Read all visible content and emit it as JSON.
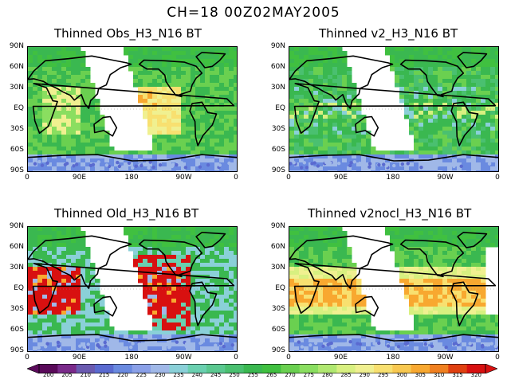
{
  "header": {
    "title": "CH=18   00Z02MAY2005"
  },
  "panels": [
    {
      "title": "Thinned Obs_H3_N16 BT",
      "style": "obs"
    },
    {
      "title": "Thinned v2_H3_N16 BT",
      "style": "v2"
    },
    {
      "title": "Thinned Old_H3_N16 BT",
      "style": "old"
    },
    {
      "title": "Thinned v2nocl_H3_N16 BT",
      "style": "nocl"
    }
  ],
  "axes": {
    "y_ticks": [
      "90N",
      "60N",
      "30N",
      "EQ",
      "30S",
      "60S",
      "90S"
    ],
    "x_ticks": [
      "0",
      "90E",
      "180",
      "90W",
      "0"
    ]
  },
  "colorbar": {
    "labels": [
      "200",
      "205",
      "210",
      "215",
      "220",
      "225",
      "230",
      "235",
      "240",
      "245",
      "250",
      "255",
      "265",
      "270",
      "275",
      "280",
      "285",
      "290",
      "295",
      "300",
      "305",
      "310",
      "315",
      "320"
    ],
    "colors": [
      "#5a0a5a",
      "#7a2a8a",
      "#6a5ab0",
      "#5a6ad0",
      "#6a8ae0",
      "#8aa0e8",
      "#a0b8e8",
      "#8ad0d8",
      "#6ad0b0",
      "#5ac890",
      "#4ac070",
      "#3ab850",
      "#40c040",
      "#6ad050",
      "#8ade60",
      "#b0e870",
      "#d8f080",
      "#f0f090",
      "#f8e070",
      "#f8c850",
      "#f8a830",
      "#f08020",
      "#e04010",
      "#d81010"
    ]
  }
}
